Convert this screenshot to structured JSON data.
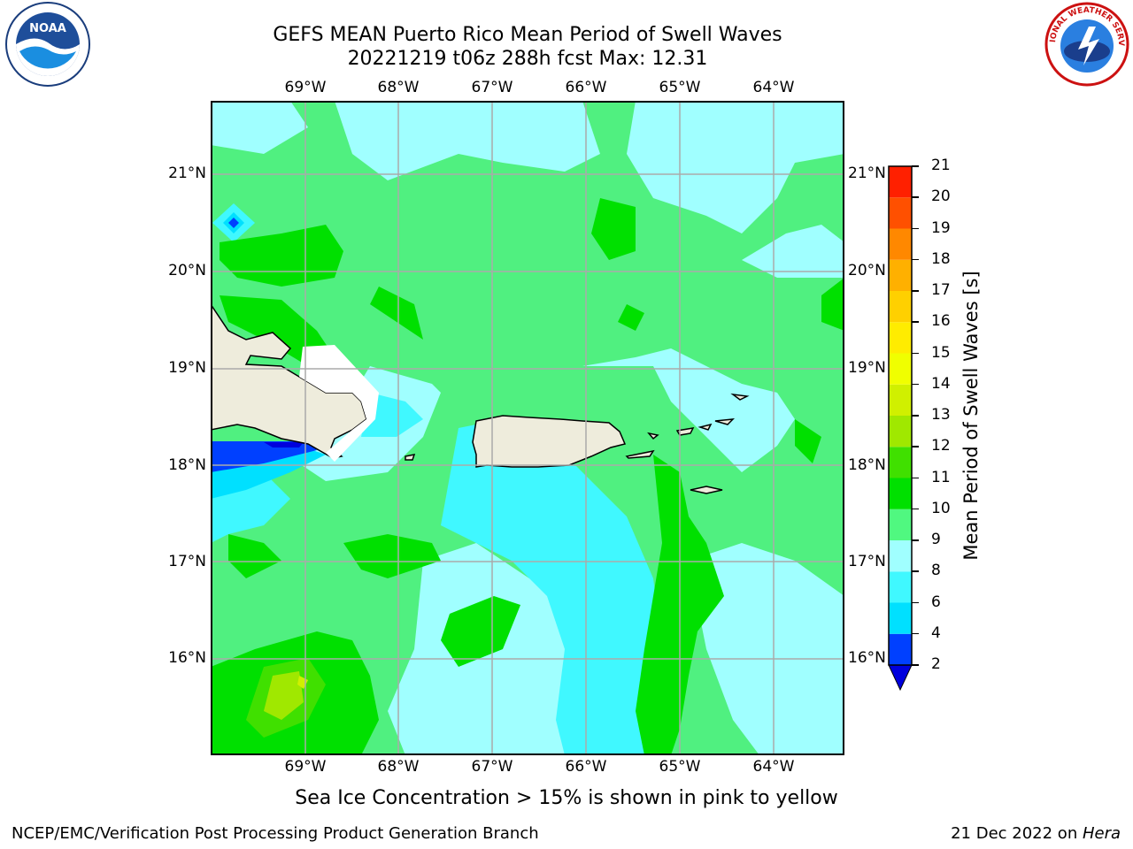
{
  "title": {
    "line1": "GEFS MEAN Puerto Rico Mean Period of Swell Waves",
    "line2": "20221219 t06z 288h fcst   Max: 12.31"
  },
  "map": {
    "lon_labels": [
      "69°W",
      "68°W",
      "67°W",
      "66°W",
      "65°W",
      "64°W"
    ],
    "lat_labels": [
      "21°N",
      "20°N",
      "19°N",
      "18°N",
      "17°N",
      "16°N"
    ],
    "extent": {
      "lon_min": -70.0,
      "lon_max": -63.25,
      "lat_min": 15.0,
      "lat_max": 21.75
    },
    "land_color": "#eeecdc",
    "background_field_color": "#50f080"
  },
  "colorbar": {
    "label": "Mean Period of Swell Waves [s]",
    "ticks": [
      "2",
      "4",
      "6",
      "8",
      "9",
      "10",
      "11",
      "12",
      "13",
      "14",
      "15",
      "16",
      "17",
      "18",
      "19",
      "20",
      "21"
    ],
    "colors": [
      "#0040ff",
      "#00e0ff",
      "#40f8ff",
      "#a0ffff",
      "#50f880",
      "#00e000",
      "#40e000",
      "#a0e800",
      "#d0f000",
      "#f0ff00",
      "#ffec00",
      "#ffd000",
      "#ffb000",
      "#ff8800",
      "#ff5000",
      "#ff2000"
    ],
    "extend_min_color": "#0000dd"
  },
  "footer": {
    "note": "Sea Ice Concentration > 15% is shown in pink to yellow",
    "left": "NCEP/EMC/Verification Post Processing Product Generation Branch",
    "right_date": "21 Dec 2022 on ",
    "right_machine": "Hera"
  },
  "logos": {
    "noaa_text": "NOAA",
    "nws_text": "NATIONAL WEATHER SERVICE"
  }
}
